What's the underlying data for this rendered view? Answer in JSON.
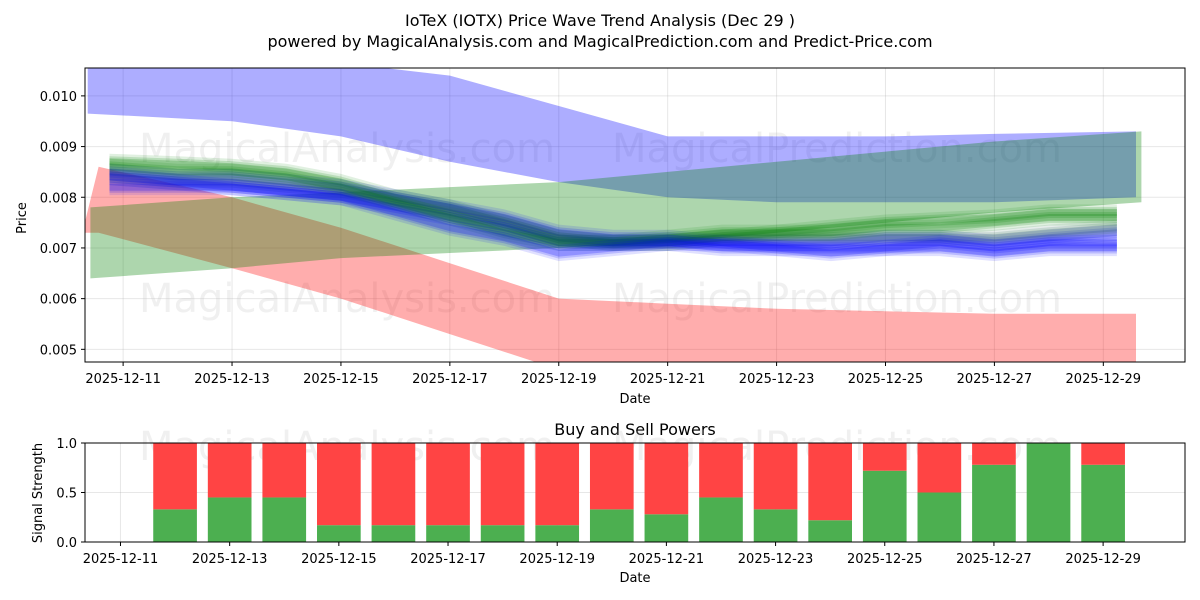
{
  "title_line1": "IoTeX (IOTX) Price Wave Trend Analysis (Dec 29 )",
  "title_line2": "powered by MagicalAnalysis.com and MagicalPrediction.com and Predict-Price.com",
  "watermarks": [
    "MagicalAnalysis.com",
    "MagicalPrediction.com"
  ],
  "chart_data": [
    {
      "type": "area",
      "title": "",
      "xlabel": "Date",
      "ylabel": "Price",
      "xlim": [
        -0.7,
        19.5
      ],
      "ylim": [
        0.00475,
        0.01055
      ],
      "x_tick_labels": [
        "2025-12-11",
        "2025-12-13",
        "2025-12-15",
        "2025-12-17",
        "2025-12-19",
        "2025-12-21",
        "2025-12-23",
        "2025-12-25",
        "2025-12-27",
        "2025-12-29"
      ],
      "x_tick_pos": [
        0,
        2,
        4,
        6,
        8,
        10,
        12,
        14,
        16,
        18
      ],
      "y_ticks": [
        0.005,
        0.006,
        0.007,
        0.008,
        0.009,
        0.01
      ],
      "y_tick_labels": [
        "0.005",
        "0.006",
        "0.007",
        "0.008",
        "0.009",
        "0.010"
      ],
      "colors": {
        "blue": "#0000ff",
        "red": "#ff0000",
        "green": "#008000",
        "teal": "#4a7d8c"
      },
      "bands": [
        {
          "name": "blue-wave",
          "color": "#0000ff",
          "opacity": 0.32,
          "x": [
            -0.65,
            2,
            4,
            6,
            8,
            10,
            12,
            14,
            16,
            18.6
          ],
          "upper": [
            0.01065,
            0.01065,
            0.01065,
            0.0104,
            0.0098,
            0.0092,
            0.0092,
            0.0092,
            0.00925,
            0.0093
          ],
          "lower": [
            0.00965,
            0.0095,
            0.0092,
            0.0087,
            0.0083,
            0.008,
            0.0079,
            0.0079,
            0.0079,
            0.008
          ]
        },
        {
          "name": "red-wave",
          "color": "#ff0000",
          "opacity": 0.32,
          "x": [
            -0.75,
            -0.45,
            2,
            4,
            6,
            8,
            10,
            12,
            14,
            16,
            18.6
          ],
          "upper": [
            0.0073,
            0.0086,
            0.008,
            0.0074,
            0.0067,
            0.006,
            0.0059,
            0.0058,
            0.00575,
            0.0057,
            0.0057
          ],
          "lower": [
            0.0073,
            0.0073,
            0.0066,
            0.006,
            0.0053,
            0.0046,
            0.0046,
            0.0046,
            0.0046,
            0.0046,
            0.0046
          ]
        },
        {
          "name": "green-wave",
          "color": "#008000",
          "opacity": 0.32,
          "x": [
            -0.6,
            2,
            4,
            6,
            8,
            10,
            12,
            14,
            16,
            18.7
          ],
          "upper": [
            0.0078,
            0.008,
            0.0081,
            0.0082,
            0.0083,
            0.0085,
            0.0087,
            0.0089,
            0.0091,
            0.0093
          ],
          "lower": [
            0.0064,
            0.0066,
            0.0068,
            0.0069,
            0.007,
            0.0071,
            0.0073,
            0.0075,
            0.0077,
            0.0079
          ]
        }
      ],
      "paths": {
        "x": [
          -0.25,
          1,
          2,
          3,
          4,
          5,
          6,
          7,
          8,
          9,
          10,
          11,
          12,
          13,
          14,
          15,
          16,
          17,
          18.25
        ],
        "series": [
          {
            "color": "#008000",
            "values": [
              0.0087,
              0.00865,
              0.0086,
              0.0085,
              0.0083,
              0.008,
              0.0078,
              0.0075,
              0.0072,
              0.0071,
              0.0071,
              0.0072,
              0.0073,
              0.0074,
              0.0075,
              0.00755,
              0.0076,
              0.0077,
              0.0077
            ]
          },
          {
            "color": "#0000ff",
            "values": [
              0.0085,
              0.0084,
              0.0084,
              0.0083,
              0.0082,
              0.008,
              0.0078,
              0.0076,
              0.0073,
              0.0072,
              0.0072,
              0.0071,
              0.0071,
              0.0071,
              0.0072,
              0.0072,
              0.0071,
              0.0072,
              0.0073
            ]
          },
          {
            "color": "#2e6b57",
            "values": [
              0.0084,
              0.0083,
              0.0083,
              0.0082,
              0.0081,
              0.0079,
              0.0077,
              0.0075,
              0.0072,
              0.0071,
              0.0071,
              0.0072,
              0.0072,
              0.0072,
              0.0072,
              0.0072,
              0.0072,
              0.0073,
              0.0074
            ]
          },
          {
            "color": "#0000ff",
            "values": [
              0.0082,
              0.0082,
              0.0082,
              0.0081,
              0.008,
              0.0078,
              0.0076,
              0.0074,
              0.0071,
              0.0071,
              0.0071,
              0.0071,
              0.007,
              0.007,
              0.007,
              0.0071,
              0.007,
              0.0071,
              0.0071
            ]
          },
          {
            "color": "#008000",
            "values": [
              0.0086,
              0.0085,
              0.0085,
              0.0084,
              0.0082,
              0.0079,
              0.0076,
              0.0073,
              0.0071,
              0.0071,
              0.0072,
              0.0073,
              0.0073,
              0.0073,
              0.0074,
              0.0074,
              0.0075,
              0.0076,
              0.0076
            ]
          },
          {
            "color": "#0000ff",
            "values": [
              0.0084,
              0.0083,
              0.0082,
              0.0081,
              0.008,
              0.0077,
              0.0074,
              0.0072,
              0.0069,
              0.007,
              0.0071,
              0.007,
              0.007,
              0.0069,
              0.007,
              0.007,
              0.0069,
              0.007,
              0.007
            ]
          }
        ]
      }
    },
    {
      "type": "bar",
      "title": "Buy and Sell Powers",
      "xlabel": "Date",
      "ylabel": "Signal Strength",
      "xlim": [
        -0.65,
        19.5
      ],
      "ylim": [
        0,
        1.0
      ],
      "y_ticks": [
        0.0,
        0.5,
        1.0
      ],
      "y_tick_labels": [
        "0.0",
        "0.5",
        "1.0"
      ],
      "x_tick_labels": [
        "2025-12-11",
        "2025-12-13",
        "2025-12-15",
        "2025-12-17",
        "2025-12-19",
        "2025-12-21",
        "2025-12-23",
        "2025-12-25",
        "2025-12-27",
        "2025-12-29"
      ],
      "x_tick_pos": [
        0,
        2,
        4,
        6,
        8,
        10,
        12,
        14,
        16,
        18
      ],
      "x": [
        1,
        2,
        3,
        4,
        5,
        6,
        7,
        8,
        9,
        10,
        11,
        12,
        13,
        14,
        15,
        16,
        17,
        18
      ],
      "series": [
        {
          "name": "Buy",
          "color": "#4caf50",
          "values": [
            0.33,
            0.45,
            0.45,
            0.17,
            0.17,
            0.17,
            0.17,
            0.17,
            0.33,
            0.28,
            0.45,
            0.33,
            0.22,
            0.72,
            0.5,
            0.78,
            1.0,
            0.78
          ]
        },
        {
          "name": "Sell",
          "color": "#ff4444",
          "values": [
            0.67,
            0.55,
            0.55,
            0.83,
            0.83,
            0.83,
            0.83,
            0.83,
            0.67,
            0.72,
            0.55,
            0.67,
            0.78,
            0.28,
            0.5,
            0.22,
            0.0,
            0.22
          ]
        }
      ]
    }
  ]
}
